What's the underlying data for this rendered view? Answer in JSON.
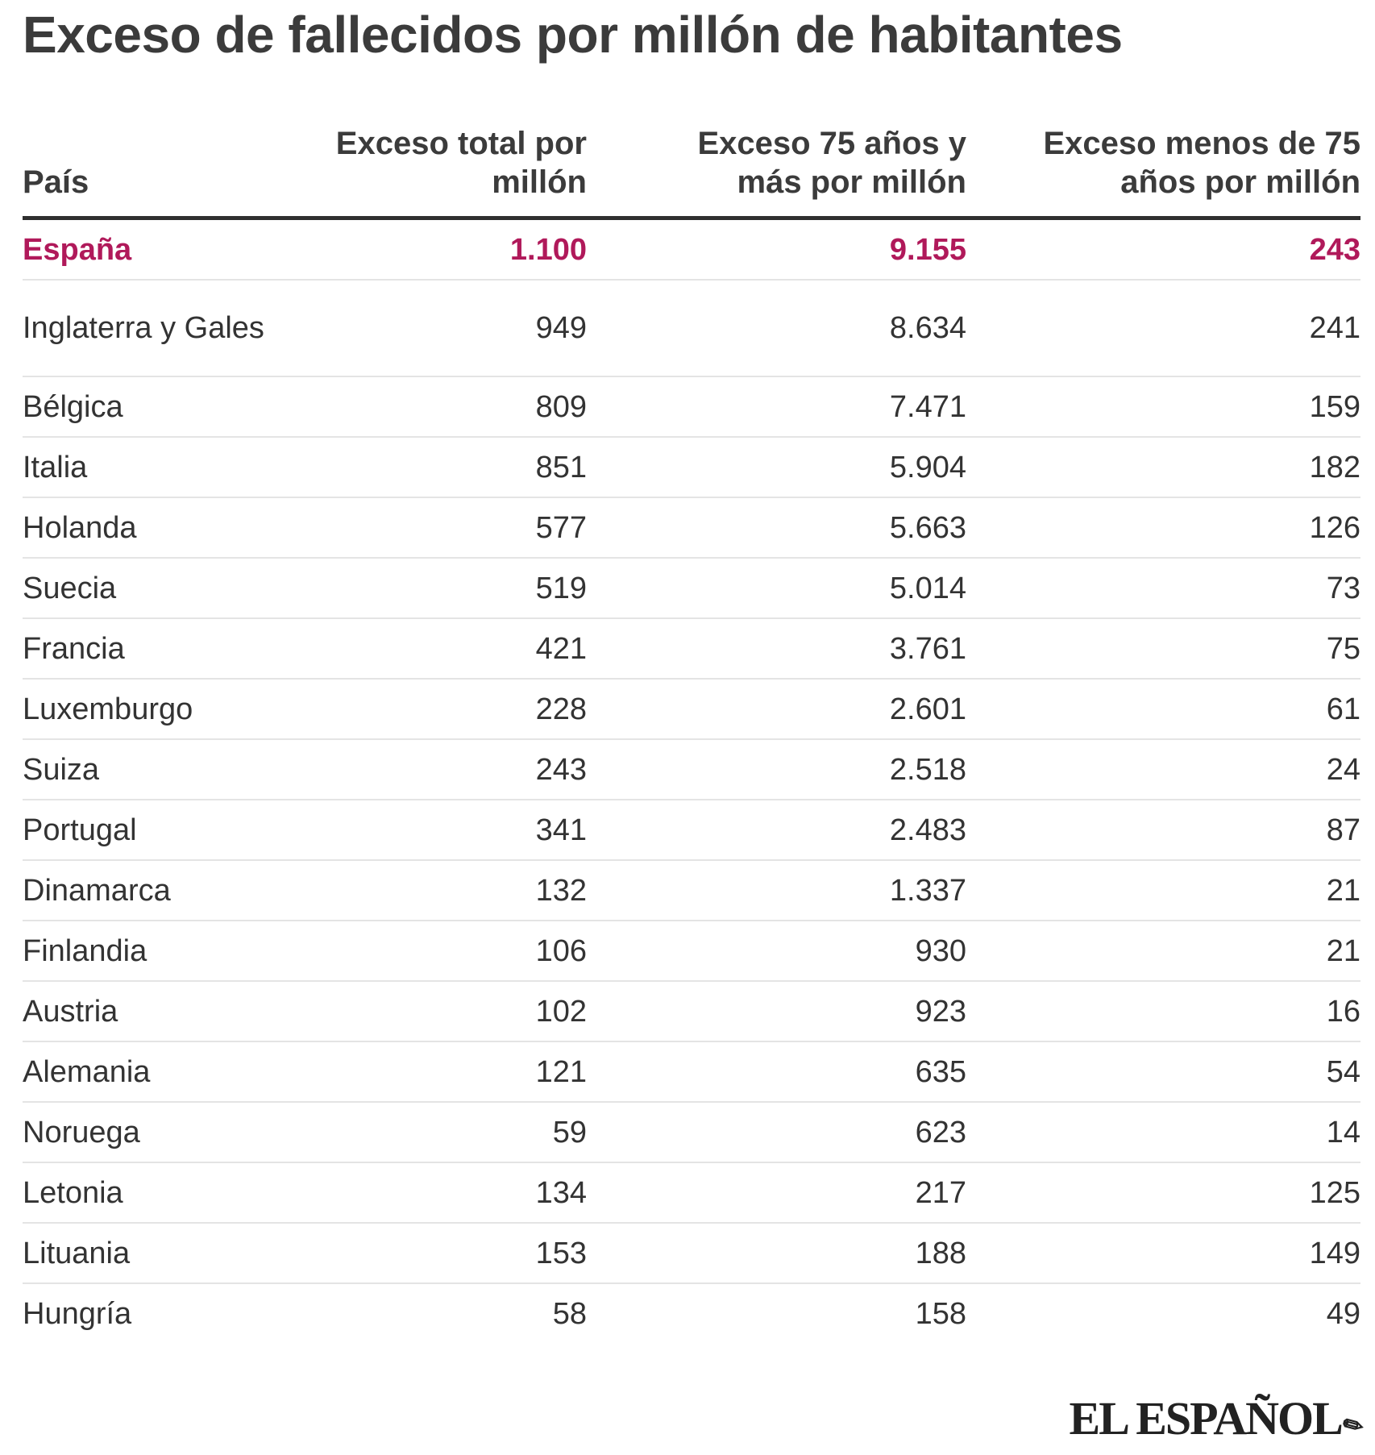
{
  "title": "Exceso de fallecidos por millón de habitantes",
  "logo": "EL ESPAÑOL",
  "colors": {
    "highlight": "#b0195a",
    "text": "#333333",
    "header_rule": "#2f2f2f",
    "row_rule": "#e4e4e4"
  },
  "chart_data": {
    "type": "table",
    "title": "Exceso de fallecidos por millón de habitantes",
    "columns": [
      "País",
      "Exceso total por millón",
      "Exceso 75 años y más por millón",
      "Exceso menos de 75 años por millón"
    ],
    "rows": [
      [
        "España",
        "1.100",
        "9.155",
        "243"
      ],
      [
        "Inglaterra y Gales",
        "949",
        "8.634",
        "241"
      ],
      [
        "Bélgica",
        "809",
        "7.471",
        "159"
      ],
      [
        "Italia",
        "851",
        "5.904",
        "182"
      ],
      [
        "Holanda",
        "577",
        "5.663",
        "126"
      ],
      [
        "Suecia",
        "519",
        "5.014",
        "73"
      ],
      [
        "Francia",
        "421",
        "3.761",
        "75"
      ],
      [
        "Luxemburgo",
        "228",
        "2.601",
        "61"
      ],
      [
        "Suiza",
        "243",
        "2.518",
        "24"
      ],
      [
        "Portugal",
        "341",
        "2.483",
        "87"
      ],
      [
        "Dinamarca",
        "132",
        "1.337",
        "21"
      ],
      [
        "Finlandia",
        "106",
        "930",
        "21"
      ],
      [
        "Austria",
        "102",
        "923",
        "16"
      ],
      [
        "Alemania",
        "121",
        "635",
        "54"
      ],
      [
        "Noruega",
        "59",
        "623",
        "14"
      ],
      [
        "Letonia",
        "134",
        "217",
        "125"
      ],
      [
        "Lituania",
        "153",
        "188",
        "149"
      ],
      [
        "Hungría",
        "58",
        "158",
        "49"
      ]
    ],
    "highlight_row": "España"
  }
}
